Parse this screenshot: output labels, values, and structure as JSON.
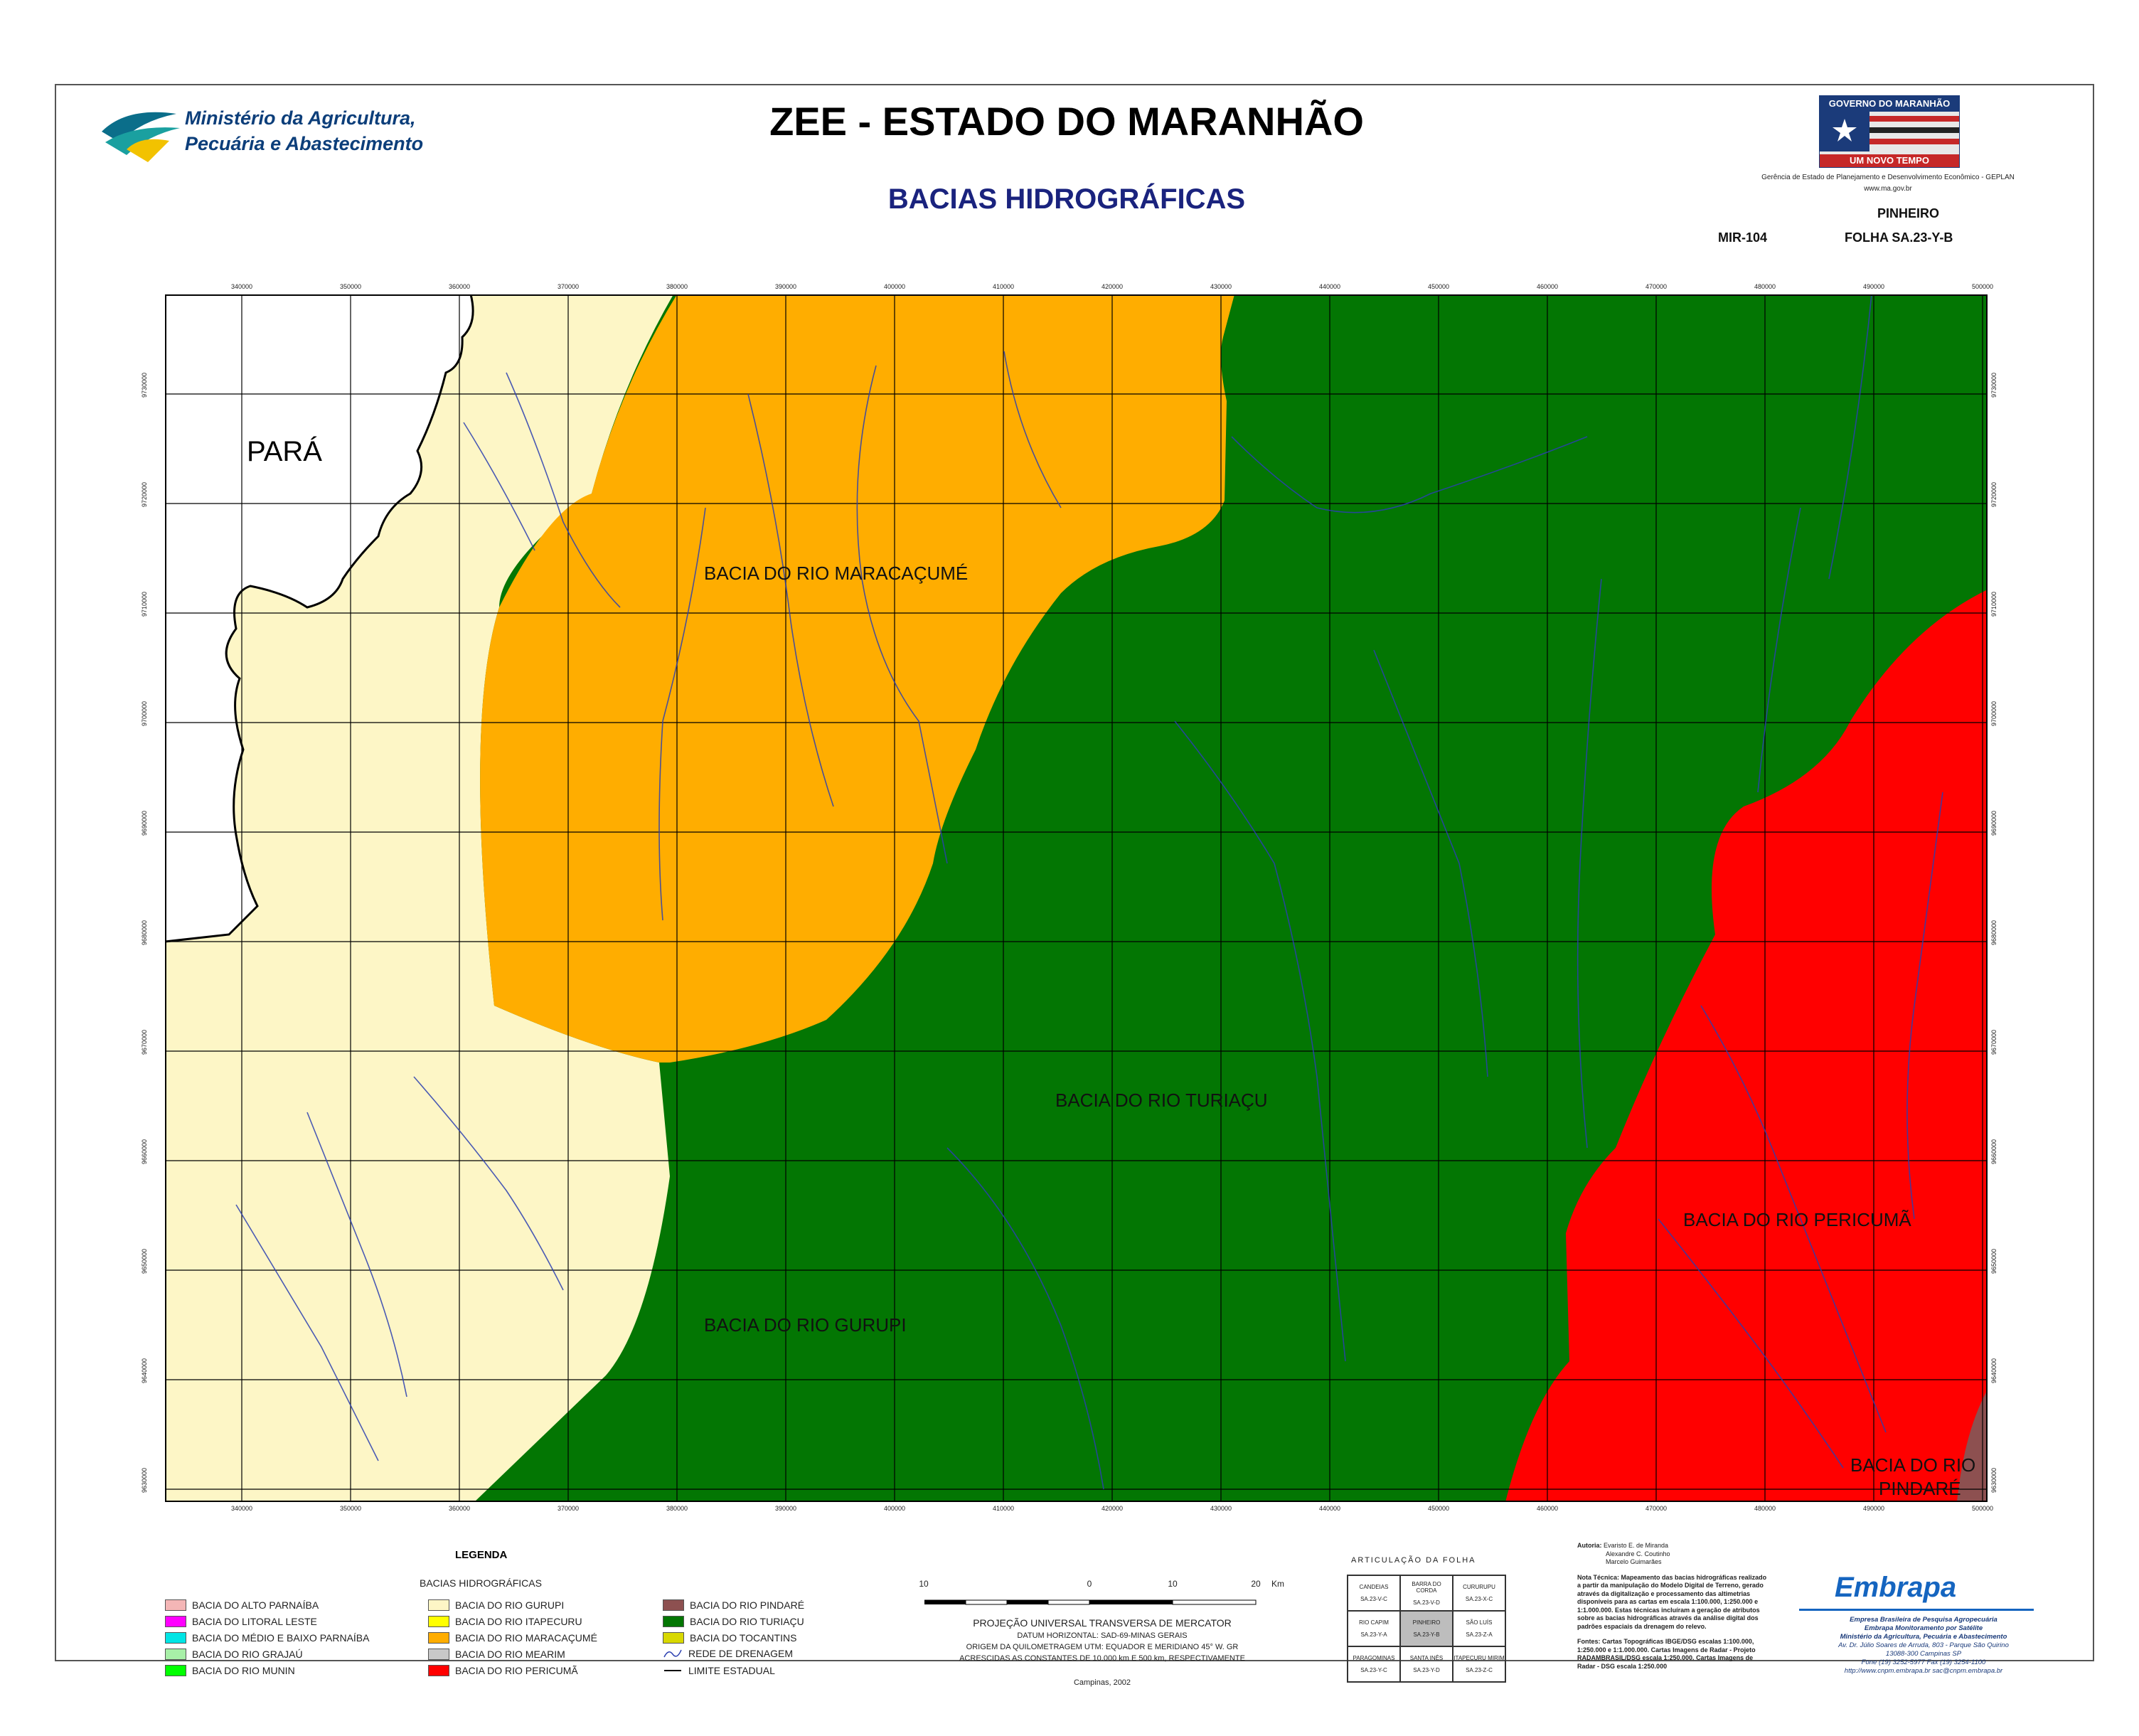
{
  "header": {
    "title": "ZEE - ESTADO DO MARANHÃO",
    "subtitle": "BACIAS HIDROGRÁFICAS",
    "ministry_line1": "Ministério da Agricultura,",
    "ministry_line2": "Pecuária e Abastecimento",
    "gov_top": "GOVERNO DO MARANHÃO",
    "gov_bottom": "UM NOVO TEMPO",
    "gov_agency": "Gerência de Estado de Planejamento e Desenvolvimento Econômico - GEPLAN",
    "gov_site": "www.ma.gov.br",
    "sheet_name": "PINHEIRO",
    "mir": "MIR-104",
    "folha": "FOLHA SA.23-Y-B"
  },
  "map": {
    "regions": [
      {
        "name": "BACIA DO RIO GURUPI",
        "color": "#fdf6c6"
      },
      {
        "name": "BACIA DO RIO MARACAÇUMÉ",
        "color": "#ffad00"
      },
      {
        "name": "BACIA DO RIO TURIAÇU",
        "color": "#037603"
      },
      {
        "name": "BACIA DO RIO PERICUMÃ",
        "color": "#ff0000"
      },
      {
        "name": "BACIA DO RIO PINDARÉ",
        "color": "#8d5050"
      }
    ],
    "state_label": "PARÁ",
    "pindare_line1": "BACIA DO RIO",
    "pindare_line2": "PINDARÉ",
    "x_ticks": [
      "340000",
      "350000",
      "360000",
      "370000",
      "380000",
      "390000",
      "400000",
      "410000",
      "420000",
      "430000",
      "440000",
      "450000",
      "460000",
      "470000",
      "480000",
      "490000",
      "500000"
    ],
    "y_ticks": [
      "9730000",
      "9720000",
      "9710000",
      "9700000",
      "9690000",
      "9680000",
      "9670000",
      "9660000",
      "9650000",
      "9640000",
      "9630000"
    ]
  },
  "legend": {
    "title": "LEGENDA",
    "subtitle": "BACIAS HIDROGRÁFICAS",
    "col1": [
      {
        "label": "BACIA DO ALTO PARNAÍBA",
        "color": "#f4b6b6"
      },
      {
        "label": "BACIA DO LITORAL LESTE",
        "color": "#ff00ff"
      },
      {
        "label": "BACIA DO MÉDIO E BAIXO PARNAÍBA",
        "color": "#00e5e5"
      },
      {
        "label": "BACIA DO RIO GRAJAÚ",
        "color": "#a8f0a8"
      },
      {
        "label": "BACIA DO RIO MUNIN",
        "color": "#00ff00"
      }
    ],
    "col2": [
      {
        "label": "BACIA DO RIO GURUPI",
        "color": "#fdf6c6"
      },
      {
        "label": "BACIA DO RIO ITAPECURU",
        "color": "#ffff00"
      },
      {
        "label": "BACIA DO RIO MARACAÇUMÉ",
        "color": "#ffad00"
      },
      {
        "label": "BACIA DO RIO MEARIM",
        "color": "#c8c8c8"
      },
      {
        "label": "BACIA DO RIO PERICUMÃ",
        "color": "#ff0000"
      }
    ],
    "col3": [
      {
        "label": "BACIA DO RIO PINDARÉ",
        "color": "#8d5050"
      },
      {
        "label": "BACIA DO RIO TURIAÇU",
        "color": "#037603"
      },
      {
        "label": "BACIA DO TOCANTINS",
        "color": "#d8d800"
      }
    ],
    "drainage": "REDE DE DRENAGEM",
    "state_limit": "LIMITE ESTADUAL"
  },
  "scale": {
    "ticks": [
      "10",
      "0",
      "10",
      "20"
    ],
    "unit": "Km",
    "projection": "PROJEÇÃO UNIVERSAL TRANSVERSA DE MERCATOR",
    "datum": "DATUM HORIZONTAL: SAD-69-MINAS GERAIS",
    "origin": "ORIGEM DA QUILOMETRAGEM UTM: EQUADOR E MERIDIANO 45° W. GR",
    "constants": "ACRESCIDAS AS CONSTANTES DE 10.000 km E 500 km, RESPECTIVAMENTE",
    "place": "Campinas, 2002"
  },
  "articulation": {
    "title": "ARTICULAÇÃO DA FOLHA",
    "cells": [
      {
        "name": "CANDEIAS",
        "code": "SA.23-V-C"
      },
      {
        "name": "BARRA DO CORDA",
        "code": "SA.23-V-D"
      },
      {
        "name": "CURURUPU",
        "code": "SA.23-X-C"
      },
      {
        "name": "RIO CAPIM",
        "code": "SA.23-Y-A"
      },
      {
        "name": "PINHEIRO",
        "code": "SA.23-Y-B"
      },
      {
        "name": "SÃO LUÍS",
        "code": "SA.23-Z-A"
      },
      {
        "name": "PARAGOMINAS",
        "code": "SA.23-Y-C"
      },
      {
        "name": "SANTA INÊS",
        "code": "SA.23-Y-D"
      },
      {
        "name": "ITAPECURU MIRIM",
        "code": "SA.23-Z-C"
      }
    ]
  },
  "credits": {
    "authors_label": "Autoria:",
    "authors": [
      "Evaristo E. de Miranda",
      "Alexandre C. Coutinho",
      "Marcelo Guimarães"
    ],
    "tech_note": "Nota Técnica: Mapeamento das bacias hidrográficas realizado a partir da manipulação do Modelo Digital de Terreno, gerado através da digitalização e processamento das altimetrias disponíveis para as cartas em escala 1:100.000, 1:250.000 e 1:1.000.000. Estas técnicas incluíram a geração de atributos sobre as bacias hidrográficas através da análise digital dos padrões espaciais da drenagem do relevo.",
    "sources": "Fontes: Cartas Topográficas IBGE/DSG escalas 1:100.000, 1:250.000 e 1:1.000.000. Cartas Imagens de Radar - Projeto RADAMBRASIL/DSG escala 1:250.000. Cartas Imagens de Radar - DSG escala 1:250.000"
  },
  "embrapa": {
    "logo": "Embrapa",
    "line1": "Empresa Brasileira de Pesquisa Agropecuária",
    "line2": "Embrapa Monitoramento por Satélite",
    "line3": "Ministério da Agricultura, Pecuária e Abastecimento",
    "line4": "Av. Dr. Júlio Soares de Arruda, 803 - Parque São Quirino",
    "line5": "13088-300 Campinas SP",
    "line6": "Fone (19) 3252-5977 Fax (19) 3254-1100",
    "line7": "http://www.cnpm.embrapa.br  sac@cnpm.embrapa.br"
  }
}
